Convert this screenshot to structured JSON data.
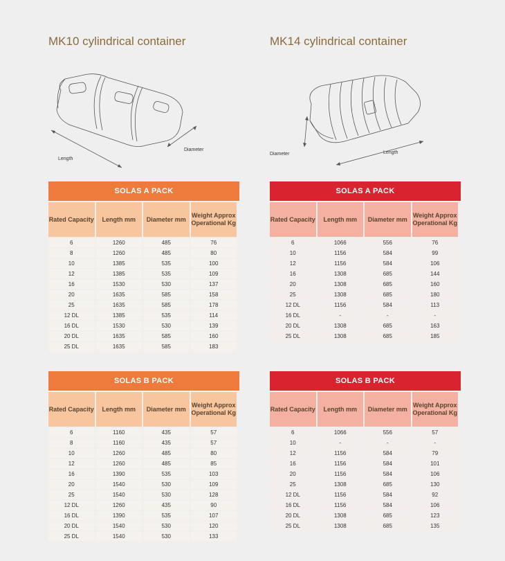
{
  "mk10": {
    "title": "MK10 cylindrical container",
    "labels": {
      "length": "Length",
      "diameter": "Diameter"
    },
    "solas_a": {
      "banner": "SOLAS A PACK",
      "headers": [
        "Rated Capacity",
        "Length mm",
        "Diameter mm",
        "Weight Approx Operational Kg"
      ],
      "rows": [
        [
          "6",
          "1260",
          "485",
          "76"
        ],
        [
          "8",
          "1260",
          "485",
          "80"
        ],
        [
          "10",
          "1385",
          "535",
          "100"
        ],
        [
          "12",
          "1385",
          "535",
          "109"
        ],
        [
          "16",
          "1530",
          "530",
          "137"
        ],
        [
          "20",
          "1635",
          "585",
          "158"
        ],
        [
          "25",
          "1635",
          "585",
          "178"
        ],
        [
          "12 DL",
          "1385",
          "535",
          "114"
        ],
        [
          "16 DL",
          "1530",
          "530",
          "139"
        ],
        [
          "20 DL",
          "1635",
          "585",
          "160"
        ],
        [
          "25 DL",
          "1635",
          "585",
          "183"
        ]
      ]
    },
    "solas_b": {
      "banner": "SOLAS B PACK",
      "headers": [
        "Rated Capacity",
        "Length mm",
        "Diameter mm",
        "Weight Approx Operational Kg"
      ],
      "rows": [
        [
          "6",
          "1160",
          "435",
          "57"
        ],
        [
          "8",
          "1160",
          "435",
          "57"
        ],
        [
          "10",
          "1260",
          "485",
          "80"
        ],
        [
          "12",
          "1260",
          "485",
          "85"
        ],
        [
          "16",
          "1390",
          "535",
          "103"
        ],
        [
          "20",
          "1540",
          "530",
          "109"
        ],
        [
          "25",
          "1540",
          "530",
          "128"
        ],
        [
          "12 DL",
          "1260",
          "435",
          "90"
        ],
        [
          "16 DL",
          "1390",
          "535",
          "107"
        ],
        [
          "20 DL",
          "1540",
          "530",
          "120"
        ],
        [
          "25 DL",
          "1540",
          "530",
          "133"
        ]
      ]
    }
  },
  "mk14": {
    "title": "MK14 cylindrical container",
    "labels": {
      "length": "Length",
      "diameter": "Diameter"
    },
    "solas_a": {
      "banner": "SOLAS A PACK",
      "headers": [
        "Rated Capacity",
        "Length mm",
        "Diameter mm",
        "Weight Approx Operational Kg"
      ],
      "rows": [
        [
          "6",
          "1066",
          "556",
          "76"
        ],
        [
          "10",
          "1156",
          "584",
          "99"
        ],
        [
          "12",
          "1156",
          "584",
          "106"
        ],
        [
          "16",
          "1308",
          "685",
          "144"
        ],
        [
          "20",
          "1308",
          "685",
          "160"
        ],
        [
          "25",
          "1308",
          "685",
          "180"
        ],
        [
          "12 DL",
          "1156",
          "584",
          "113"
        ],
        [
          "16 DL",
          "-",
          "-",
          "-"
        ],
        [
          "20 DL",
          "1308",
          "685",
          "163"
        ],
        [
          "25 DL",
          "1308",
          "685",
          "185"
        ]
      ]
    },
    "solas_b": {
      "banner": "SOLAS B PACK",
      "headers": [
        "Rated Capacity",
        "Length mm",
        "Diameter mm",
        "Weight Approx Operational Kg"
      ],
      "rows": [
        [
          "6",
          "1066",
          "556",
          "57"
        ],
        [
          "10",
          "-",
          "-",
          "-"
        ],
        [
          "12",
          "1156",
          "584",
          "79"
        ],
        [
          "16",
          "1156",
          "584",
          "101"
        ],
        [
          "20",
          "1156",
          "584",
          "106"
        ],
        [
          "25",
          "1308",
          "685",
          "130"
        ],
        [
          "12 DL",
          "1156",
          "584",
          "92"
        ],
        [
          "16 DL",
          "1156",
          "584",
          "106"
        ],
        [
          "20 DL",
          "1308",
          "685",
          "123"
        ],
        [
          "25 DL",
          "1308",
          "685",
          "135"
        ]
      ]
    }
  }
}
